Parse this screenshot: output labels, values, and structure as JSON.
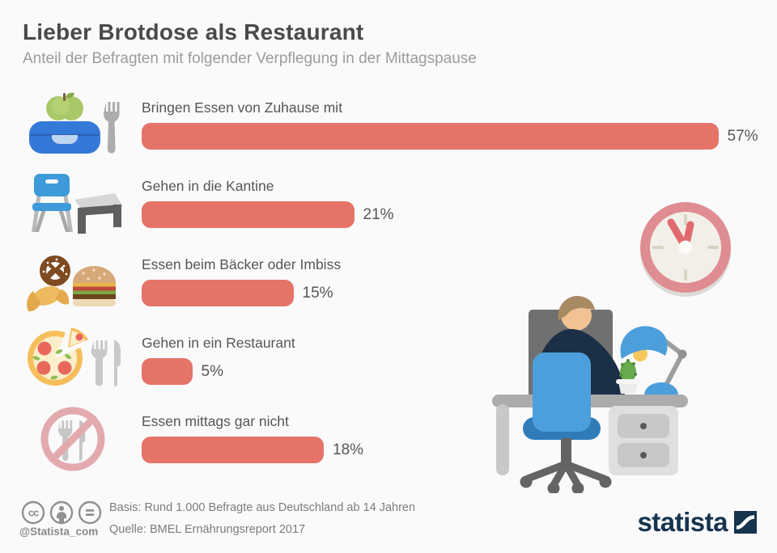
{
  "header": {
    "title": "Lieber Brotdose als Restaurant",
    "subtitle": "Anteil der Befragten mit folgender Verpflegung in der Mittagspause"
  },
  "chart_data": {
    "type": "bar",
    "orientation": "horizontal",
    "unit": "%",
    "categories": [
      "Bringen Essen von Zuhause mit",
      "Gehen in die Kantine",
      "Essen beim Bäcker oder Imbiss",
      "Gehen in ein Restaurant",
      "Essen mittags gar nicht"
    ],
    "values": [
      57,
      21,
      15,
      5,
      18
    ],
    "value_labels": [
      "57%",
      "21%",
      "15%",
      "5%",
      "18%"
    ],
    "xlim": [
      0,
      60
    ],
    "bar_color": "#E57368",
    "grid": false,
    "legend": "none",
    "row_icons": [
      "lunchbox-apple-fork-icon",
      "chair-table-icon",
      "croissant-pretzel-burger-icon",
      "pizza-cutlery-icon",
      "no-food-icon"
    ]
  },
  "illustration": {
    "items": [
      "wall-clock-icon",
      "person-at-desk-icon"
    ],
    "clock_ring_color": "#DF8D92",
    "accent_blue": "#4D9FDC"
  },
  "footer": {
    "license_icons": [
      "cc-icon",
      "attribution-icon",
      "no-derivatives-icon"
    ],
    "handle": "@Statista_com",
    "basis": "Basis: Rund 1.000 Befragte aus Deutschland ab 14 Jahren",
    "source": "Quelle: BMEL Ernährungsreport 2017",
    "brand": "statista"
  }
}
